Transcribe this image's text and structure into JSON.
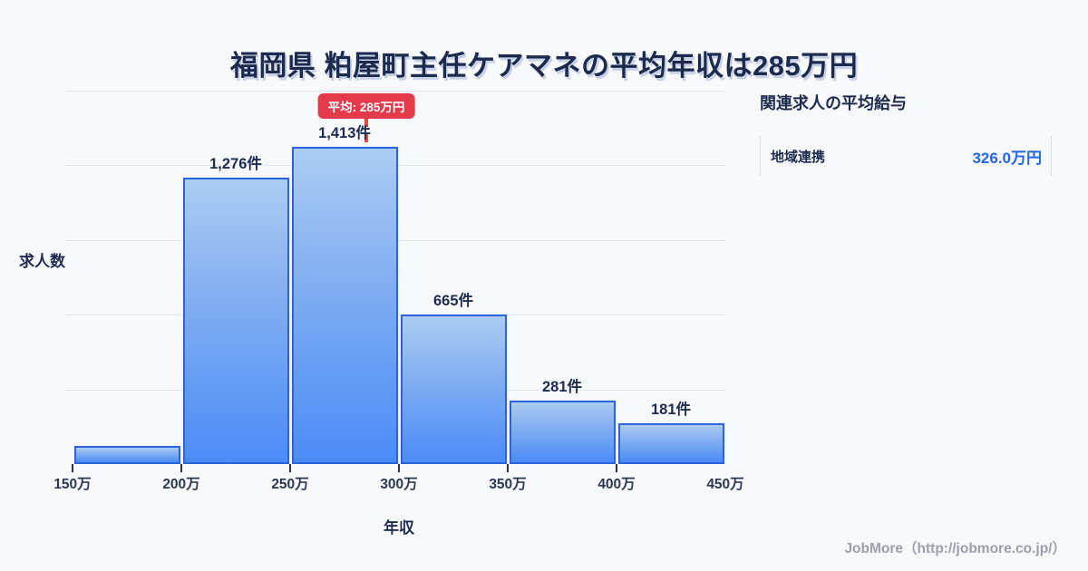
{
  "title": "福岡県 粕屋町主任ケアマネの平均年収は285万円",
  "chart_data": {
    "type": "bar",
    "title": "福岡県 粕屋町主任ケアマネの平均年収は285万円",
    "xlabel": "年収",
    "ylabel": "求人数",
    "x_ticks": [
      "150万",
      "200万",
      "250万",
      "300万",
      "350万",
      "400万",
      "450万"
    ],
    "x_range_man_yen": [
      150,
      450
    ],
    "bin_width_man_yen": 50,
    "categories": [
      "150万-200万",
      "200万-250万",
      "250万-300万",
      "300万-350万",
      "350万-400万",
      "400万-450万"
    ],
    "values": [
      80,
      1276,
      1413,
      665,
      281,
      181
    ],
    "bar_labels": [
      "",
      "1,276件",
      "1,413件",
      "665件",
      "281件",
      "181件"
    ],
    "y_max": 1663,
    "grid": true,
    "legend": false,
    "average_line": {
      "x_man_yen": 285,
      "badge_label": "平均: 285万円"
    }
  },
  "side_panel": {
    "heading": "関連求人の平均給与",
    "rows": [
      {
        "label": "地域連携",
        "value": "326.0万円"
      }
    ]
  },
  "footer": {
    "credit": "JobMore（http://jobmore.co.jp/）"
  },
  "colors": {
    "background": "#f8f9fb",
    "title_text": "#1c2b4d",
    "bar_fill_top": "#abccf3",
    "bar_fill_bottom": "#4a8cf6",
    "bar_border": "#2a63da",
    "gridline": "#e2e5ef",
    "average_red": "#e5493e",
    "badge_background": "#e53a4b",
    "value_blue": "#2465e0",
    "footer_gray": "#9aa0ab"
  }
}
